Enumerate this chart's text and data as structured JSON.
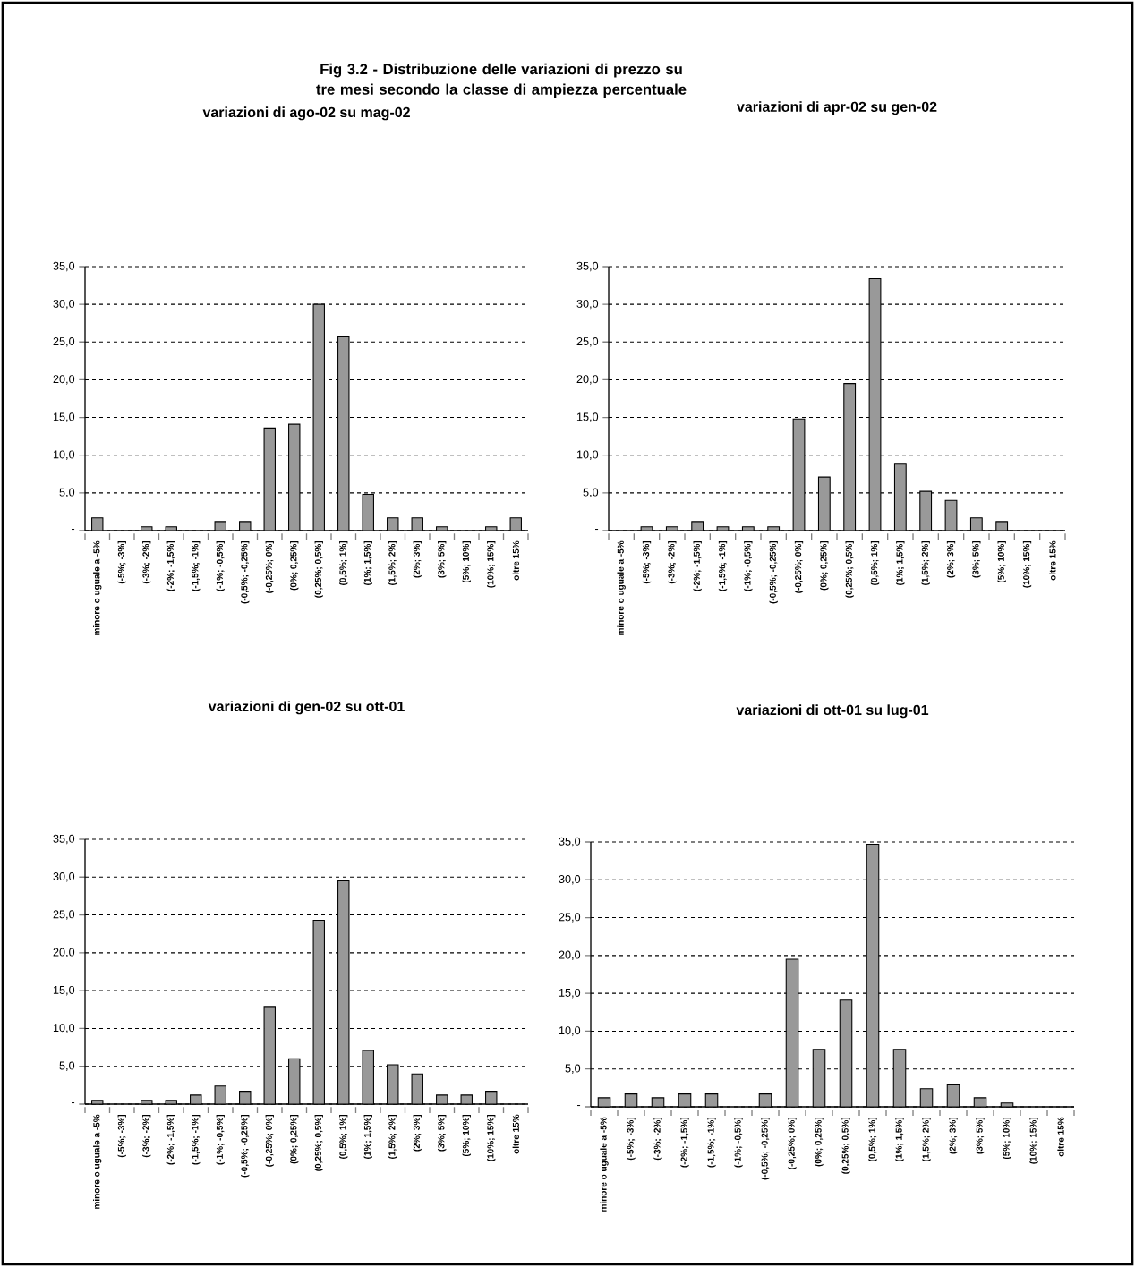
{
  "chart_data": [
    {
      "type": "other",
      "title": "Fig 3.2 - Distribuzione delle variazioni di prezzo su tre mesi secondo la classe di ampiezza percentuale"
    },
    {
      "type": "bar",
      "title": "variazioni di ago-02 su mag-02",
      "color": "#999999",
      "grid": "y",
      "categories": [
        "minore o uguale a -5%",
        "(-5%; -3%]",
        "(-3%; -2%]",
        "(-2%; -1,5%]",
        "(-1,5%; -1%]",
        "(-1%; -0,5%]",
        "(-0,5%; -0,25%]",
        "(-0,25%; 0%]",
        "(0%; 0,25%]",
        "(0,25%; 0,5%]",
        "(0,5%; 1%]",
        "(1%; 1,5%]",
        "(1,5%; 2%]",
        "(2%; 3%]",
        "(3%; 5%]",
        "(5%; 10%]",
        "(10%; 15%]",
        "oltre 15%"
      ],
      "values": [
        1.7,
        0,
        0.5,
        0.5,
        0,
        1.2,
        1.2,
        13.6,
        14.1,
        30.0,
        25.7,
        4.8,
        1.7,
        1.7,
        0.5,
        0,
        0.5,
        1.7
      ],
      "ylim": [
        0,
        35
      ],
      "yticks": [
        {
          "value": 0,
          "label": "-"
        },
        {
          "value": 5,
          "label": "5,0"
        },
        {
          "value": 10,
          "label": "10,0"
        },
        {
          "value": 15,
          "label": "15,0"
        },
        {
          "value": 20,
          "label": "20,0"
        },
        {
          "value": 25,
          "label": "25,0"
        },
        {
          "value": 30,
          "label": "30,0"
        },
        {
          "value": 35,
          "label": "35,0"
        }
      ]
    },
    {
      "type": "bar",
      "title": "variazioni di apr-02 su gen-02",
      "color": "#999999",
      "grid": "y",
      "categories": [
        "minore o uguale a -5%",
        "(-5%; -3%]",
        "(-3%; -2%]",
        "(-2%; -1,5%]",
        "(-1,5%; -1%]",
        "(-1%; -0,5%]",
        "(-0,5%; -0,25%]",
        "(-0,25%; 0%]",
        "(0%; 0,25%]",
        "(0,25%; 0,5%]",
        "(0,5%; 1%]",
        "(1%; 1,5%]",
        "(1,5%; 2%]",
        "(2%; 3%]",
        "(3%; 5%]",
        "(5%; 10%]",
        "(10%; 15%]",
        "oltre 15%"
      ],
      "values": [
        0,
        0.5,
        0.5,
        1.2,
        0.5,
        0.5,
        0.5,
        14.8,
        7.1,
        19.5,
        33.4,
        8.8,
        5.2,
        4.0,
        1.7,
        1.2,
        0,
        0
      ],
      "ylim": [
        0,
        35
      ],
      "yticks": [
        {
          "value": 0,
          "label": "-"
        },
        {
          "value": 5,
          "label": "5,0"
        },
        {
          "value": 10,
          "label": "10,0"
        },
        {
          "value": 15,
          "label": "15,0"
        },
        {
          "value": 20,
          "label": "20,0"
        },
        {
          "value": 25,
          "label": "25,0"
        },
        {
          "value": 30,
          "label": "30,0"
        },
        {
          "value": 35,
          "label": "35,0"
        }
      ]
    },
    {
      "type": "bar",
      "title": "variazioni di gen-02 su ott-01",
      "color": "#999999",
      "grid": "y",
      "categories": [
        "minore o uguale a -5%",
        "(-5%; -3%]",
        "(-3%; -2%]",
        "(-2%; -1,5%]",
        "(-1,5%; -1%]",
        "(-1%; -0,5%]",
        "(-0,5%; -0,25%]",
        "(-0,25%; 0%]",
        "(0%; 0,25%]",
        "(0,25%; 0,5%]",
        "(0,5%; 1%]",
        "(1%; 1,5%]",
        "(1,5%; 2%]",
        "(2%; 3%]",
        "(3%; 5%]",
        "(5%; 10%]",
        "(10%; 15%]",
        "oltre 15%"
      ],
      "values": [
        0.5,
        0,
        0.5,
        0.5,
        1.2,
        2.4,
        1.7,
        12.9,
        6.0,
        24.3,
        29.5,
        7.1,
        5.2,
        4.0,
        1.2,
        1.2,
        1.7,
        0
      ],
      "ylim": [
        0,
        35
      ],
      "yticks": [
        {
          "value": 0,
          "label": "-"
        },
        {
          "value": 5,
          "label": "5,0"
        },
        {
          "value": 10,
          "label": "10,0"
        },
        {
          "value": 15,
          "label": "15,0"
        },
        {
          "value": 20,
          "label": "20,0"
        },
        {
          "value": 25,
          "label": "25,0"
        },
        {
          "value": 30,
          "label": "30,0"
        },
        {
          "value": 35,
          "label": "35,0"
        }
      ]
    },
    {
      "type": "bar",
      "title": "variazioni di ott-01 su lug-01",
      "color": "#999999",
      "grid": "y",
      "categories": [
        "minore o uguale a -5%",
        "(-5%; -3%]",
        "(-3%; -2%]",
        "(-2%; -1,5%]",
        "(-1,5%; -1%]",
        "(-1%; -0,5%]",
        "(-0,5%; -0,25%]",
        "(-0,25%; 0%]",
        "(0%; 0,25%]",
        "(0,25%; 0,5%]",
        "(0,5%; 1%]",
        "(1%; 1,5%]",
        "(1,5%; 2%]",
        "(2%; 3%]",
        "(3%; 5%]",
        "(5%; 10%]",
        "(10%; 15%]",
        "oltre 15%"
      ],
      "values": [
        1.2,
        1.7,
        1.2,
        1.7,
        1.7,
        0,
        1.7,
        19.5,
        7.6,
        14.1,
        34.7,
        7.6,
        2.4,
        2.9,
        1.2,
        0.5,
        0,
        0
      ],
      "ylim": [
        0,
        35
      ],
      "yticks": [
        {
          "value": 0,
          "label": "-"
        },
        {
          "value": 5,
          "label": "5,0"
        },
        {
          "value": 10,
          "label": "10,0"
        },
        {
          "value": 15,
          "label": "15,0"
        },
        {
          "value": 20,
          "label": "20,0"
        },
        {
          "value": 25,
          "label": "25,0"
        },
        {
          "value": 30,
          "label": "30,0"
        },
        {
          "value": 35,
          "label": "35,0"
        }
      ]
    }
  ]
}
